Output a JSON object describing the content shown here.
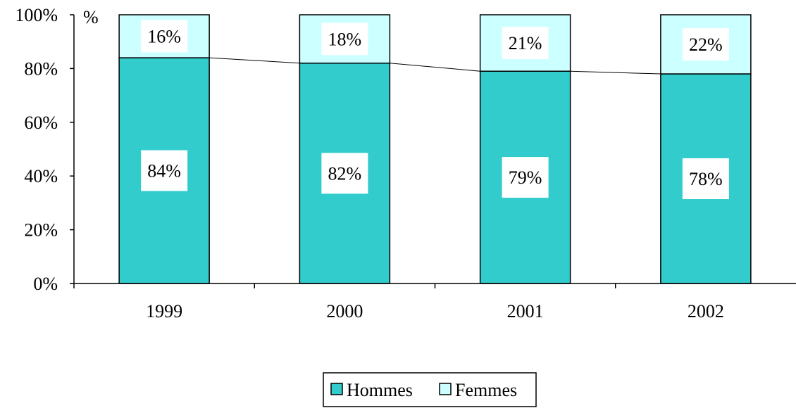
{
  "chart_data": {
    "type": "bar",
    "stacked": true,
    "percent_stacked": true,
    "categories": [
      "1999",
      "2000",
      "2001",
      "2002"
    ],
    "series": [
      {
        "name": "Hommes",
        "values": [
          84,
          82,
          79,
          78
        ],
        "labels": [
          "84%",
          "82%",
          "79%",
          "78%"
        ]
      },
      {
        "name": "Femmes",
        "values": [
          16,
          18,
          21,
          22
        ],
        "labels": [
          "16%",
          "18%",
          "21%",
          "22%"
        ]
      }
    ],
    "ylabel": "%",
    "ylim": [
      0,
      100
    ],
    "yticks": [
      "0%",
      "20%",
      "40%",
      "60%",
      "80%",
      "100%"
    ],
    "series_lines": true,
    "grid": false,
    "legend_position": "bottom",
    "colors": {
      "Hommes": "#33CCCC",
      "Femmes": "#CCFFFF",
      "outline": "#000000",
      "label_box": "#FFFFFF"
    }
  }
}
